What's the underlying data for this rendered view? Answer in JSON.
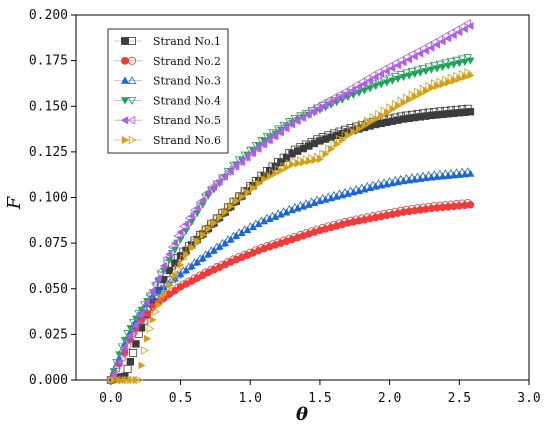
{
  "chart_data": {
    "type": "scatter",
    "xlabel": "θ",
    "ylabel": "F",
    "xlim": [
      -0.25,
      3.0
    ],
    "ylim": [
      0.0,
      0.2
    ],
    "xticks": [
      "0.0",
      "0.5",
      "1.0",
      "1.5",
      "2.0",
      "2.5",
      "3.0"
    ],
    "yticks": [
      "0.000",
      "0.025",
      "0.050",
      "0.075",
      "0.100",
      "0.125",
      "0.150",
      "0.175",
      "0.200"
    ],
    "grid": false,
    "legend_position": "top-left",
    "series": [
      {
        "name": "Strand No.1",
        "color": "#3c3c3c",
        "marker": "square",
        "x": [
          0.0,
          0.1,
          0.15,
          0.2,
          0.3,
          0.4,
          0.5,
          0.7,
          0.9,
          1.1,
          1.3,
          1.5,
          1.7,
          1.9,
          2.1,
          2.3,
          2.58
        ],
        "y": [
          0.0,
          0.002,
          0.012,
          0.025,
          0.043,
          0.058,
          0.068,
          0.083,
          0.098,
          0.112,
          0.124,
          0.131,
          0.136,
          0.14,
          0.143,
          0.145,
          0.147
        ]
      },
      {
        "name": "Strand No.2",
        "color": "#ee3b3b",
        "marker": "circle",
        "x": [
          0.0,
          0.1,
          0.15,
          0.2,
          0.3,
          0.4,
          0.5,
          0.7,
          0.9,
          1.1,
          1.3,
          1.5,
          1.7,
          1.9,
          2.1,
          2.3,
          2.58
        ],
        "y": [
          0.0,
          0.015,
          0.024,
          0.031,
          0.04,
          0.046,
          0.051,
          0.059,
          0.066,
          0.072,
          0.077,
          0.082,
          0.086,
          0.089,
          0.092,
          0.094,
          0.096
        ]
      },
      {
        "name": "Strand No.3",
        "color": "#1e66d6",
        "marker": "triangle-up",
        "x": [
          0.0,
          0.1,
          0.15,
          0.2,
          0.3,
          0.4,
          0.5,
          0.7,
          0.9,
          1.1,
          1.3,
          1.5,
          1.7,
          1.9,
          2.1,
          2.3,
          2.58
        ],
        "y": [
          0.0,
          0.02,
          0.028,
          0.035,
          0.046,
          0.052,
          0.058,
          0.069,
          0.079,
          0.087,
          0.093,
          0.098,
          0.102,
          0.106,
          0.109,
          0.111,
          0.113
        ]
      },
      {
        "name": "Strand No.4",
        "color": "#22a05a",
        "marker": "triangle-down",
        "x": [
          0.0,
          0.05,
          0.1,
          0.15,
          0.2,
          0.3,
          0.4,
          0.5,
          0.7,
          0.9,
          1.1,
          1.3,
          1.5,
          1.7,
          1.9,
          2.1,
          2.3,
          2.58
        ],
        "y": [
          0.0,
          0.012,
          0.022,
          0.03,
          0.036,
          0.048,
          0.063,
          0.077,
          0.101,
          0.118,
          0.131,
          0.141,
          0.148,
          0.155,
          0.161,
          0.166,
          0.17,
          0.175
        ]
      },
      {
        "name": "Strand No.5",
        "color": "#b15ee6",
        "marker": "triangle-left",
        "x": [
          0.0,
          0.05,
          0.1,
          0.15,
          0.2,
          0.3,
          0.4,
          0.5,
          0.7,
          0.9,
          1.1,
          1.3,
          1.5,
          1.7,
          1.9,
          2.1,
          2.3,
          2.58
        ],
        "y": [
          0.0,
          0.008,
          0.018,
          0.026,
          0.033,
          0.049,
          0.066,
          0.081,
          0.103,
          0.117,
          0.129,
          0.14,
          0.149,
          0.157,
          0.166,
          0.174,
          0.182,
          0.194
        ]
      },
      {
        "name": "Strand No.6",
        "color": "#d4a017",
        "marker": "triangle-right",
        "x": [
          0.0,
          0.2,
          0.25,
          0.3,
          0.35,
          0.45,
          0.55,
          0.7,
          0.9,
          1.1,
          1.3,
          1.5,
          1.6,
          1.7,
          1.9,
          2.1,
          2.3,
          2.58
        ],
        "y": [
          0.0,
          0.0,
          0.02,
          0.033,
          0.043,
          0.056,
          0.07,
          0.083,
          0.098,
          0.11,
          0.118,
          0.121,
          0.128,
          0.134,
          0.143,
          0.152,
          0.16,
          0.167
        ]
      }
    ]
  }
}
